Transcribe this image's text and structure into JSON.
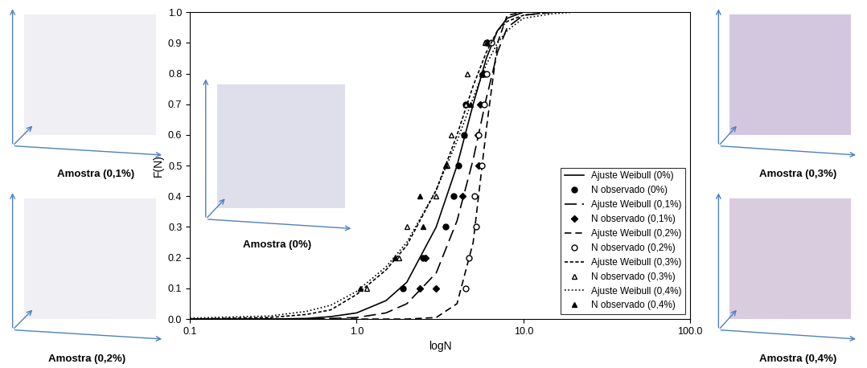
{
  "chart_data": {
    "type": "line",
    "xlabel": "logN",
    "ylabel": "F(N)",
    "log": "x",
    "xlim": [
      0.1,
      100
    ],
    "xticks": [
      {
        "value": 0.1,
        "label": "0.1"
      },
      {
        "value": 1,
        "label": "1.0"
      },
      {
        "value": 10,
        "label": "10.0"
      },
      {
        "value": 100,
        "label": "100.0"
      }
    ],
    "ylim": [
      0,
      1.0
    ],
    "yticks": [
      {
        "value": 0,
        "label": "0.0"
      },
      0.1,
      0.2,
      0.3,
      0.4,
      0.5,
      0.6,
      0.7,
      0.8,
      0.9,
      {
        "value": 1,
        "label": "1.0"
      }
    ],
    "grid": false,
    "legend": "lower right",
    "series": [
      {
        "name": "Ajuste Weibull (0%)",
        "type": "line",
        "color": "#000000",
        "line_style": "solid",
        "x": [
          0.1,
          0.3,
          0.5,
          0.7,
          1.0,
          1.5,
          2,
          3,
          4,
          5,
          6,
          7,
          8,
          10,
          15,
          20,
          100
        ],
        "values": [
          0,
          0,
          0.002,
          0.008,
          0.02,
          0.06,
          0.12,
          0.3,
          0.5,
          0.7,
          0.85,
          0.94,
          0.98,
          1,
          1,
          1,
          1
        ]
      },
      {
        "name": "N observado (0%)",
        "type": "scatter",
        "color": "#000000",
        "marker": "circle",
        "x": [
          1.9,
          2.5,
          3.4,
          3.8,
          4.1,
          4.4,
          4.5,
          5.8,
          6.0
        ],
        "values": [
          0.1,
          0.2,
          0.3,
          0.4,
          0.5,
          0.6,
          0.7,
          0.8,
          0.9
        ]
      },
      {
        "name": "Ajuste Weibull (0,1%)",
        "type": "line",
        "color": "#000000",
        "line_style": "long_dash",
        "x": [
          0.1,
          0.3,
          0.5,
          0.7,
          1.0,
          1.5,
          2,
          3,
          4,
          5,
          6,
          7,
          8,
          10,
          15,
          20,
          100
        ],
        "values": [
          0,
          0,
          0,
          0.002,
          0.005,
          0.02,
          0.05,
          0.15,
          0.32,
          0.52,
          0.72,
          0.87,
          0.95,
          0.99,
          1,
          1,
          1
        ]
      },
      {
        "name": "N observado (0,1%)",
        "type": "scatter",
        "color": "#000000",
        "marker": "diamond",
        "x": [
          2.4,
          2.6,
          3.0,
          4.3,
          5.4,
          5.3,
          5.5,
          5.7,
          6.1
        ],
        "values": [
          0.1,
          0.2,
          0.1,
          0.4,
          0.5,
          0.6,
          0.7,
          0.8,
          0.9
        ]
      },
      {
        "name": "Ajuste Weibull (0,2%)",
        "type": "line",
        "color": "#000000",
        "line_style": "dashed",
        "x": [
          0.1,
          0.3,
          0.5,
          0.7,
          1.0,
          1.5,
          2,
          3,
          4,
          5,
          6,
          7,
          8,
          10,
          15,
          20,
          100
        ],
        "values": [
          0,
          0,
          0,
          0,
          0,
          0,
          0,
          0.005,
          0.05,
          0.25,
          0.62,
          0.9,
          0.99,
          1,
          1,
          1,
          1
        ]
      },
      {
        "name": "N observado (0,2%)",
        "type": "scatter",
        "color": "#000000",
        "marker": "open_circle",
        "x": [
          4.5,
          4.7,
          5.2,
          5.1,
          5.6,
          5.4,
          5.8,
          6.0,
          6.4
        ],
        "values": [
          0.1,
          0.2,
          0.3,
          0.4,
          0.5,
          0.6,
          0.7,
          0.8,
          0.9
        ]
      },
      {
        "name": "Ajuste Weibull (0,3%)",
        "type": "line",
        "color": "#000000",
        "line_style": "short_dash",
        "x": [
          0.1,
          0.3,
          0.5,
          0.7,
          1.0,
          1.5,
          2,
          3,
          4,
          5,
          6,
          7,
          8,
          10,
          15,
          20,
          100
        ],
        "values": [
          0,
          0.005,
          0.015,
          0.03,
          0.08,
          0.16,
          0.24,
          0.42,
          0.6,
          0.76,
          0.87,
          0.94,
          0.97,
          0.99,
          1,
          1,
          1
        ]
      },
      {
        "name": "N observado (0,3%)",
        "type": "scatter",
        "color": "#000000",
        "marker": "open_triangle",
        "x": [
          1.15,
          1.8,
          2.0,
          3.0,
          3.5,
          3.7,
          4.5,
          4.6,
          5.9
        ],
        "values": [
          0.1,
          0.2,
          0.3,
          0.4,
          0.5,
          0.6,
          0.7,
          0.8,
          0.9
        ]
      },
      {
        "name": "Ajuste Weibull (0,4%)",
        "type": "line",
        "color": "#000000",
        "line_style": "dotted",
        "x": [
          0.1,
          0.3,
          0.5,
          0.7,
          1.0,
          1.5,
          2,
          3,
          4,
          5,
          6,
          7,
          8,
          10,
          15,
          20,
          100
        ],
        "values": [
          0.003,
          0.01,
          0.025,
          0.045,
          0.09,
          0.17,
          0.25,
          0.42,
          0.58,
          0.72,
          0.83,
          0.9,
          0.94,
          0.98,
          0.995,
          1,
          1
        ]
      },
      {
        "name": "N observado (0,4%)",
        "type": "scatter",
        "color": "#000000",
        "marker": "triangle",
        "x": [
          1.05,
          1.7,
          2.4,
          2.5,
          3.4,
          4.4,
          4.8,
          5.6,
          6.0
        ],
        "values": [
          0.1,
          0.2,
          0.4,
          0.3,
          0.5,
          0.6,
          0.7,
          0.8,
          0.9
        ]
      }
    ]
  },
  "images": [
    {
      "label": "Amostra (0%)"
    },
    {
      "label": "Amostra (0,1%)"
    },
    {
      "label": "Amostra (0,2%)"
    },
    {
      "label": "Amostra (0,3%)"
    },
    {
      "label": "Amostra (0,4%)"
    }
  ]
}
